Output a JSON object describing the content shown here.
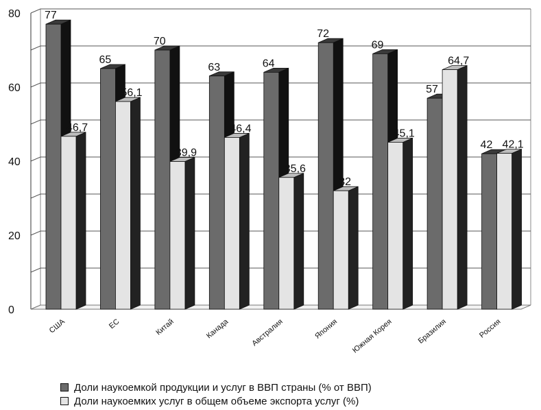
{
  "chart_data": {
    "type": "bar",
    "title": "",
    "xlabel": "",
    "ylabel": "",
    "ylim": [
      0,
      80
    ],
    "y_ticks": [
      "0",
      "20",
      "40",
      "60",
      "80"
    ],
    "categories": [
      "США",
      "ЕС",
      "Китай",
      "Канада",
      "Австралия",
      "Япония",
      "Южная Корея",
      "Бразилия",
      "Россия"
    ],
    "series": [
      {
        "name": "Доли наукоемкой продукции и услуг в ВВП страны (% от ВВП)",
        "values": [
          77,
          65,
          70,
          63,
          64,
          72,
          69,
          57,
          42
        ],
        "labels": [
          "77",
          "65",
          "70",
          "63",
          "64",
          "72",
          "69",
          "57",
          "42"
        ],
        "color": "#6b6b6b"
      },
      {
        "name": "Доли наукоемких услуг в общем объеме экспорта услуг (%)",
        "values": [
          46.7,
          56.1,
          39.9,
          46.4,
          35.6,
          32,
          45.1,
          64.7,
          42.1
        ],
        "labels": [
          "46,7",
          "56,1",
          "39,9",
          "46,4",
          "35,6",
          "32",
          "45,1",
          "64,7",
          "42,1"
        ],
        "color": "#e4e4e4"
      }
    ],
    "grid": true,
    "style": "3d",
    "legend_position": "bottom"
  }
}
